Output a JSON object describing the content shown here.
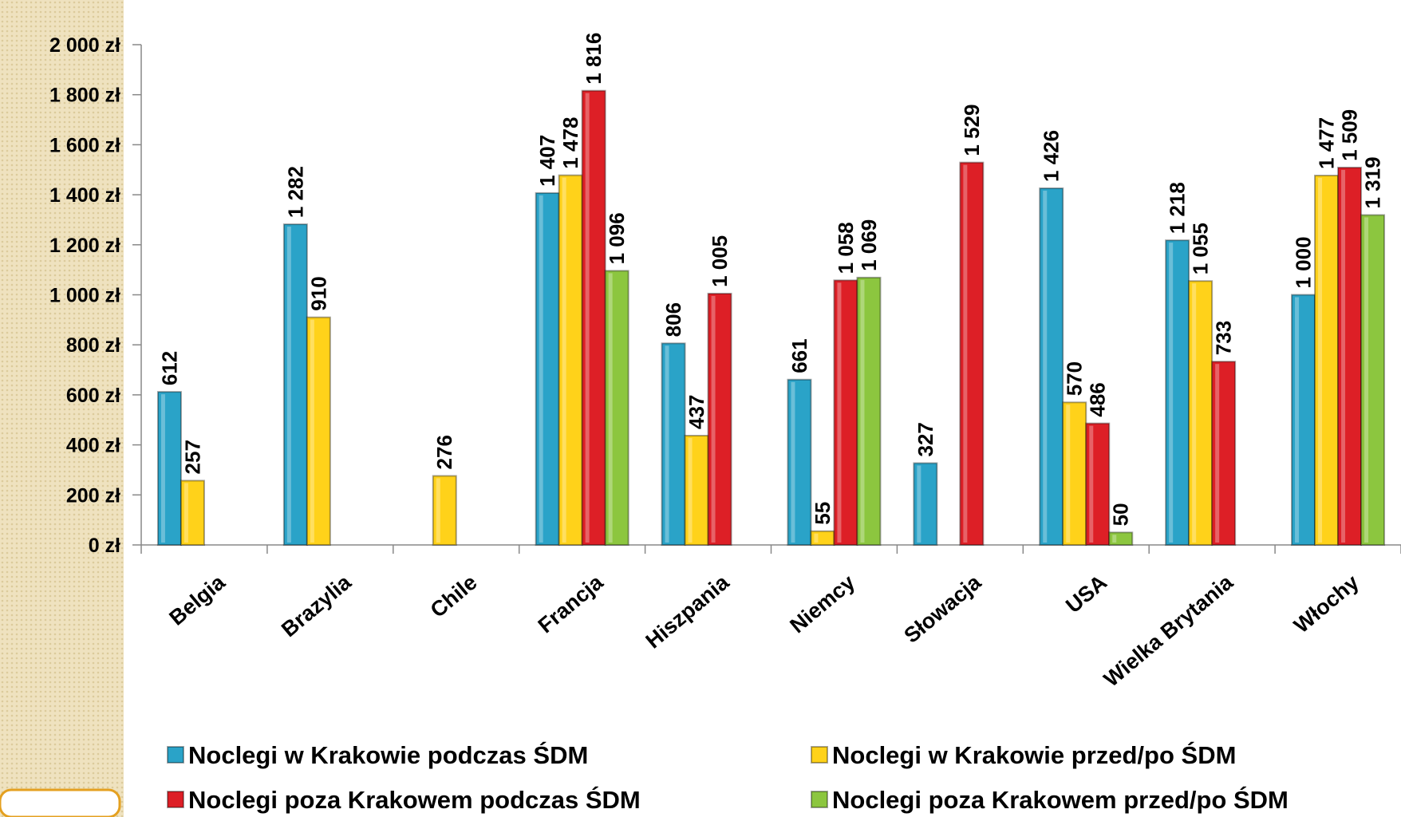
{
  "chart_data": {
    "type": "bar",
    "categories": [
      "Belgia",
      "Brazylia",
      "Chile",
      "Francja",
      "Hiszpania",
      "Niemcy",
      "Słowacja",
      "USA",
      "Wielka Brytania",
      "Włochy"
    ],
    "series": [
      {
        "name": "Noclegi w Krakowie podczas ŚDM",
        "color": "#2aa3c8",
        "values": [
          612,
          1282,
          null,
          1407,
          806,
          661,
          327,
          1426,
          1218,
          1000
        ],
        "value_labels": [
          "612",
          "1 282",
          null,
          "1 407",
          "806",
          "661",
          "327",
          "1 426",
          "1 218",
          "1 000"
        ]
      },
      {
        "name": "Noclegi w Krakowie przed/po ŚDM",
        "color": "#ffd21a",
        "values": [
          257,
          910,
          276,
          1478,
          437,
          55,
          null,
          570,
          1055,
          1477
        ],
        "value_labels": [
          "257",
          "910",
          "276",
          "1 478",
          "437",
          "55",
          null,
          "570",
          "1 055",
          "1 477"
        ]
      },
      {
        "name": "Noclegi poza Krakowem podczas ŚDM",
        "color": "#dd1f26",
        "values": [
          null,
          null,
          null,
          1816,
          1005,
          1058,
          1529,
          486,
          733,
          1509
        ],
        "value_labels": [
          null,
          null,
          null,
          "1 816",
          "1 005",
          "1 058",
          "1 529",
          "486",
          "733",
          "1 509"
        ]
      },
      {
        "name": "Noclegi poza Krakowem przed/po ŚDM",
        "color": "#8cc63f",
        "values": [
          null,
          null,
          null,
          1096,
          null,
          1069,
          null,
          50,
          null,
          1319
        ],
        "value_labels": [
          null,
          null,
          null,
          "1 096",
          null,
          "1 069",
          null,
          "50",
          null,
          "1 319"
        ]
      }
    ],
    "ylim": [
      0,
      2000
    ],
    "yticks": [
      {
        "value": 0,
        "label": "0 zł"
      },
      {
        "value": 200,
        "label": "200 zł"
      },
      {
        "value": 400,
        "label": "400 zł"
      },
      {
        "value": 600,
        "label": "600 zł"
      },
      {
        "value": 800,
        "label": "800 zł"
      },
      {
        "value": 1000,
        "label": "1 000 zł"
      },
      {
        "value": 1200,
        "label": "1 200 zł"
      },
      {
        "value": 1400,
        "label": "1 400 zł"
      },
      {
        "value": 1600,
        "label": "1 600 zł"
      },
      {
        "value": 1800,
        "label": "1 800 zł"
      },
      {
        "value": 2000,
        "label": "2 000 zł"
      }
    ],
    "grid": false,
    "legend": "bottom"
  }
}
